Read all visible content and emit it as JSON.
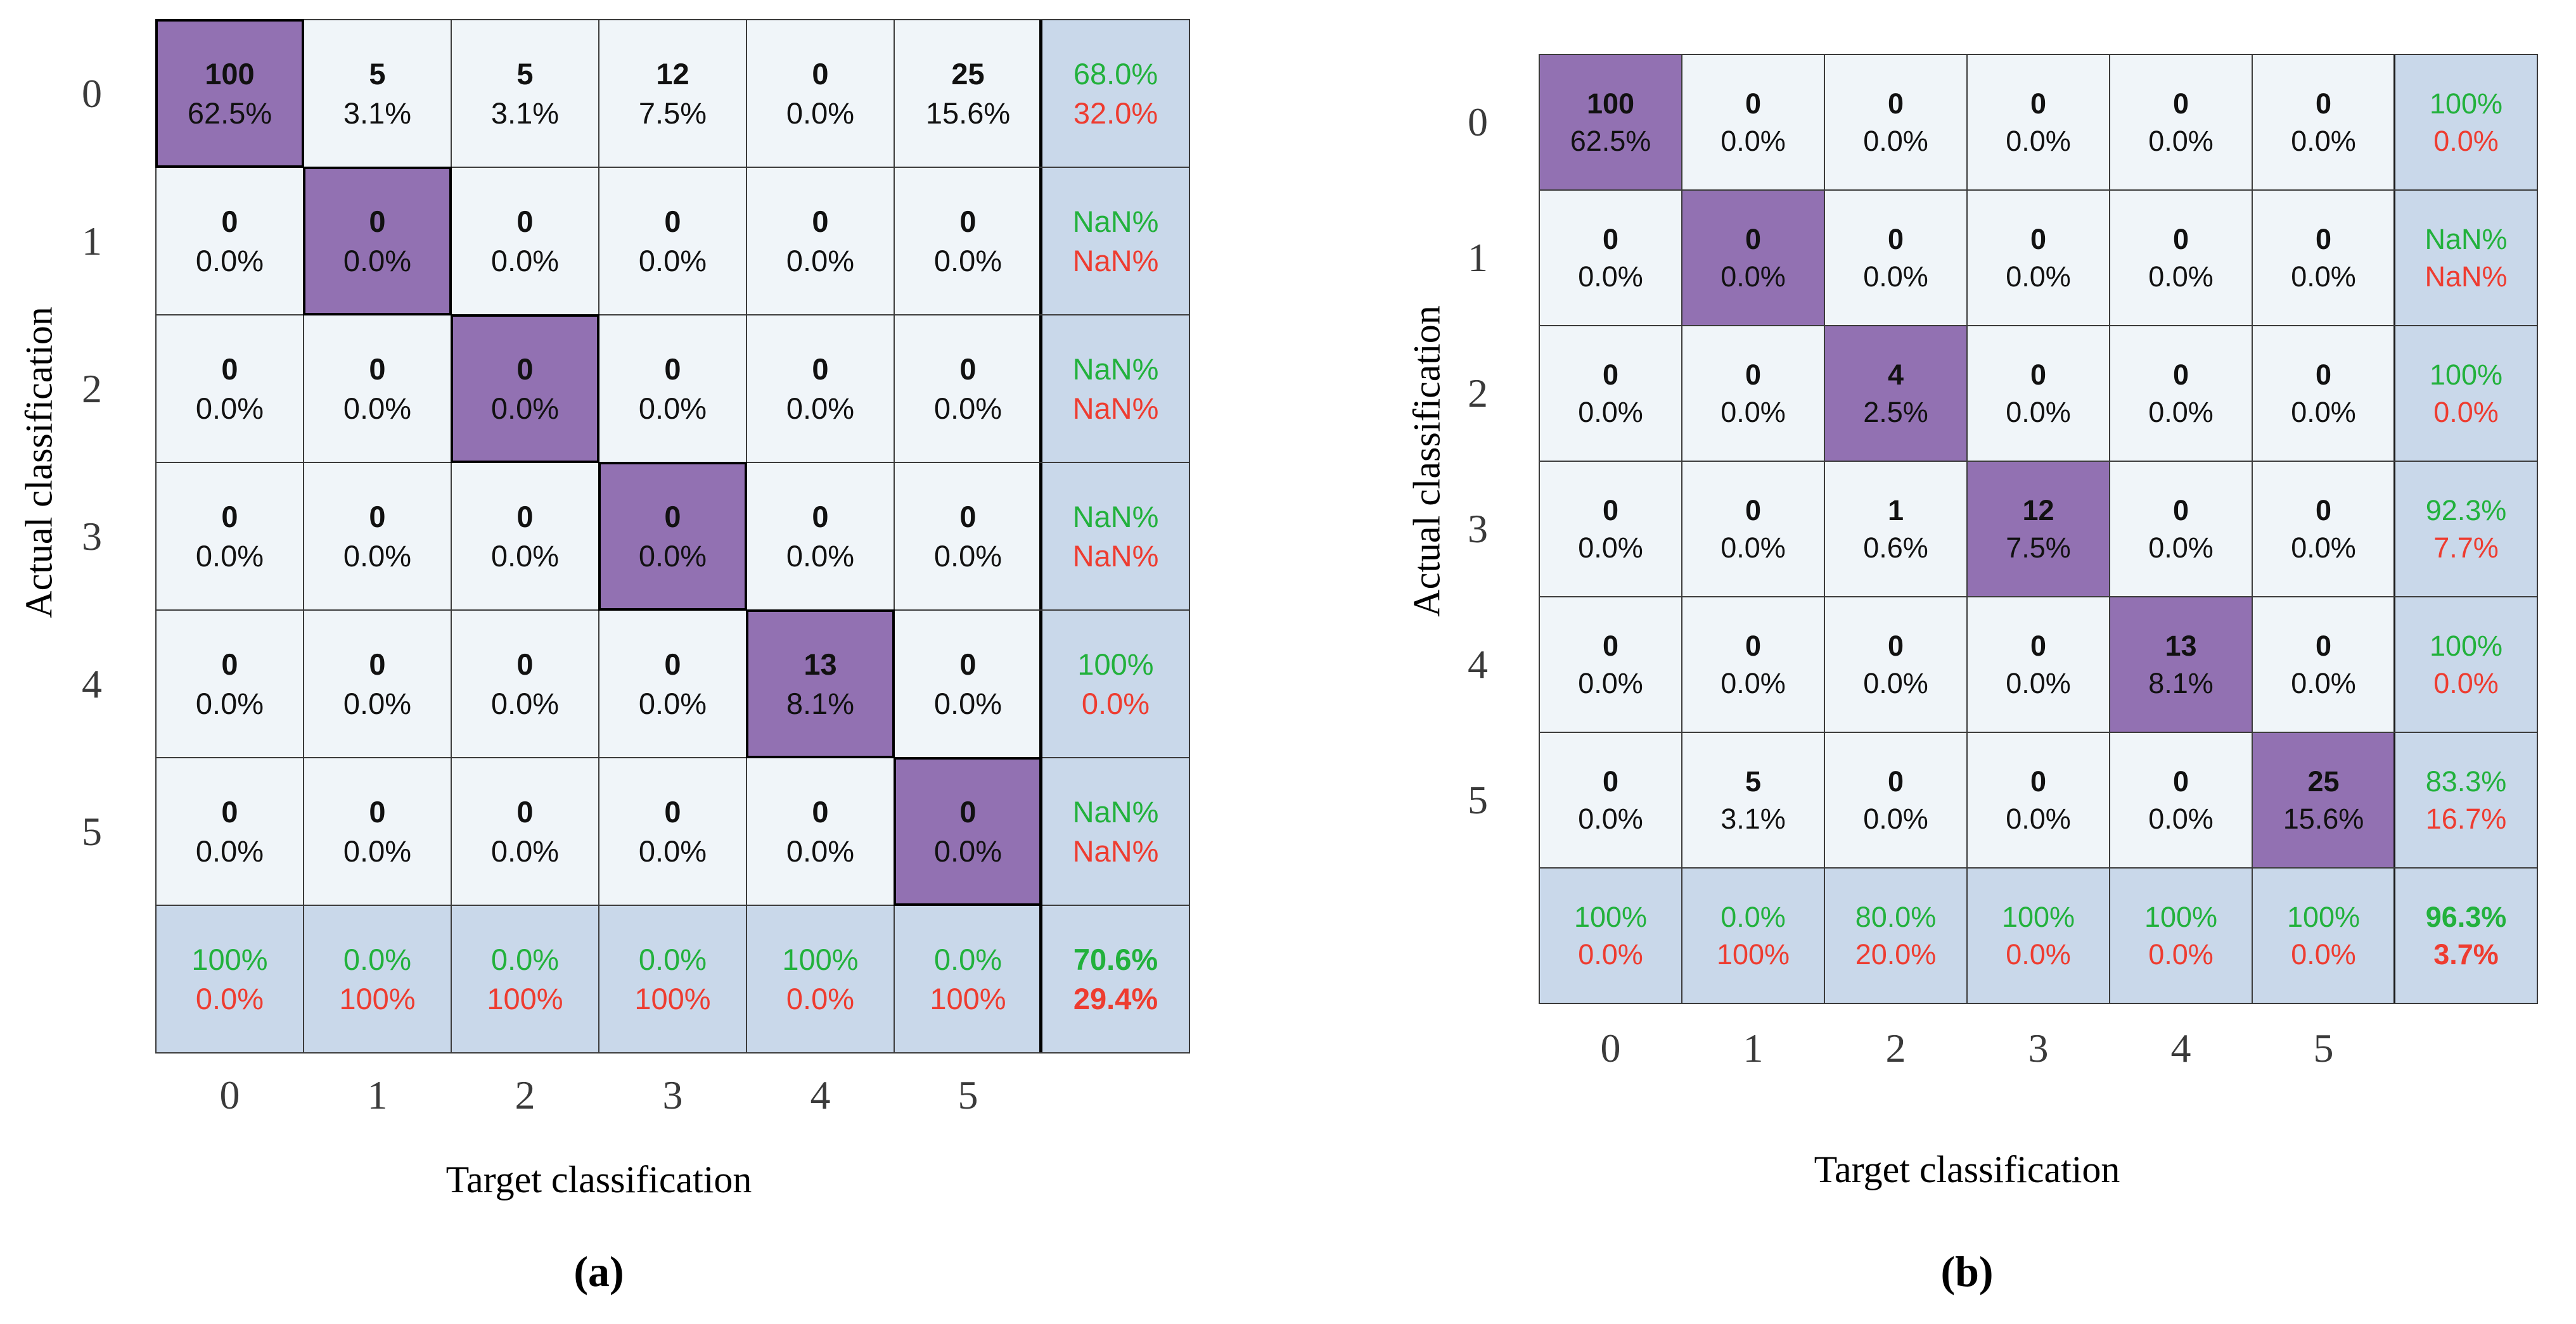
{
  "figure_type": "confusion-matrix-pair",
  "colors": {
    "diagonal_cell": "#9271b2",
    "off_diagonal_cell": "#f0f5f9",
    "summary_cell": "#c9d8ea",
    "good_green": "#22b13c",
    "bad_red": "#ee3c30",
    "grid_line": "#3c3c3c"
  },
  "chart_data": [
    {
      "type": "heatmap",
      "subtype": "confusion-matrix",
      "id": "a",
      "title": "(a)",
      "xlabel": "Target classification",
      "ylabel": "Actual classification",
      "x_tick_labels": [
        "0",
        "1",
        "2",
        "3",
        "4",
        "5"
      ],
      "y_tick_labels": [
        "0",
        "1",
        "2",
        "3",
        "4",
        "5"
      ],
      "counts": [
        [
          100,
          5,
          5,
          12,
          0,
          25
        ],
        [
          0,
          0,
          0,
          0,
          0,
          0
        ],
        [
          0,
          0,
          0,
          0,
          0,
          0
        ],
        [
          0,
          0,
          0,
          0,
          0,
          0
        ],
        [
          0,
          0,
          0,
          0,
          13,
          0
        ],
        [
          0,
          0,
          0,
          0,
          0,
          0
        ]
      ],
      "pcts": [
        [
          "62.5%",
          "3.1%",
          "3.1%",
          "7.5%",
          "0.0%",
          "15.6%"
        ],
        [
          "0.0%",
          "0.0%",
          "0.0%",
          "0.0%",
          "0.0%",
          "0.0%"
        ],
        [
          "0.0%",
          "0.0%",
          "0.0%",
          "0.0%",
          "0.0%",
          "0.0%"
        ],
        [
          "0.0%",
          "0.0%",
          "0.0%",
          "0.0%",
          "0.0%",
          "0.0%"
        ],
        [
          "0.0%",
          "0.0%",
          "0.0%",
          "0.0%",
          "8.1%",
          "0.0%"
        ],
        [
          "0.0%",
          "0.0%",
          "0.0%",
          "0.0%",
          "0.0%",
          "0.0%"
        ]
      ],
      "row_summary": [
        [
          "68.0%",
          "32.0%"
        ],
        [
          "NaN%",
          "NaN%"
        ],
        [
          "NaN%",
          "NaN%"
        ],
        [
          "NaN%",
          "NaN%"
        ],
        [
          "100%",
          "0.0%"
        ],
        [
          "NaN%",
          "NaN%"
        ]
      ],
      "col_summary": [
        [
          "100%",
          "0.0%"
        ],
        [
          "0.0%",
          "100%"
        ],
        [
          "0.0%",
          "100%"
        ],
        [
          "0.0%",
          "100%"
        ],
        [
          "100%",
          "0.0%"
        ],
        [
          "0.0%",
          "100%"
        ]
      ],
      "overall": [
        "70.6%",
        "29.4%"
      ]
    },
    {
      "type": "heatmap",
      "subtype": "confusion-matrix",
      "id": "b",
      "title": "(b)",
      "xlabel": "Target classification",
      "ylabel": "Actual classification",
      "x_tick_labels": [
        "0",
        "1",
        "2",
        "3",
        "4",
        "5"
      ],
      "y_tick_labels": [
        "0",
        "1",
        "2",
        "3",
        "4",
        "5"
      ],
      "counts": [
        [
          100,
          0,
          0,
          0,
          0,
          0
        ],
        [
          0,
          0,
          0,
          0,
          0,
          0
        ],
        [
          0,
          0,
          4,
          0,
          0,
          0
        ],
        [
          0,
          0,
          1,
          12,
          0,
          0
        ],
        [
          0,
          0,
          0,
          0,
          13,
          0
        ],
        [
          0,
          5,
          0,
          0,
          0,
          25
        ]
      ],
      "pcts": [
        [
          "62.5%",
          "0.0%",
          "0.0%",
          "0.0%",
          "0.0%",
          "0.0%"
        ],
        [
          "0.0%",
          "0.0%",
          "0.0%",
          "0.0%",
          "0.0%",
          "0.0%"
        ],
        [
          "0.0%",
          "0.0%",
          "2.5%",
          "0.0%",
          "0.0%",
          "0.0%"
        ],
        [
          "0.0%",
          "0.0%",
          "0.6%",
          "7.5%",
          "0.0%",
          "0.0%"
        ],
        [
          "0.0%",
          "0.0%",
          "0.0%",
          "0.0%",
          "8.1%",
          "0.0%"
        ],
        [
          "0.0%",
          "3.1%",
          "0.0%",
          "0.0%",
          "0.0%",
          "15.6%"
        ]
      ],
      "row_summary": [
        [
          "100%",
          "0.0%"
        ],
        [
          "NaN%",
          "NaN%"
        ],
        [
          "100%",
          "0.0%"
        ],
        [
          "92.3%",
          "7.7%"
        ],
        [
          "100%",
          "0.0%"
        ],
        [
          "83.3%",
          "16.7%"
        ]
      ],
      "col_summary": [
        [
          "100%",
          "0.0%"
        ],
        [
          "0.0%",
          "100%"
        ],
        [
          "80.0%",
          "20.0%"
        ],
        [
          "100%",
          "0.0%"
        ],
        [
          "100%",
          "0.0%"
        ],
        [
          "100%",
          "0.0%"
        ]
      ],
      "overall": [
        "96.3%",
        "3.7%"
      ]
    }
  ]
}
